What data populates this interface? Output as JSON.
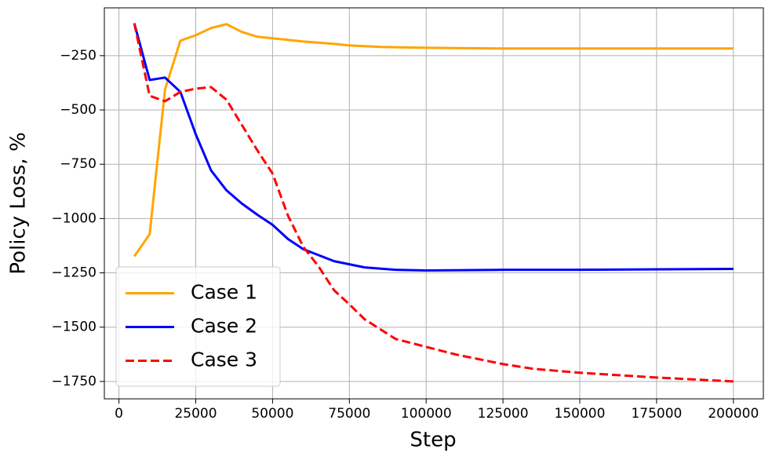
{
  "chart_data": {
    "type": "line",
    "xlabel": "Step",
    "ylabel": "Policy Loss, %",
    "xlim": [
      -4750,
      209750
    ],
    "ylim": [
      -1830,
      -30
    ],
    "xticks": [
      0,
      25000,
      50000,
      75000,
      100000,
      125000,
      150000,
      175000,
      200000
    ],
    "yticks": [
      {
        "value": -250,
        "label": "−250"
      },
      {
        "value": -500,
        "label": "−500"
      },
      {
        "value": -750,
        "label": "−750"
      },
      {
        "value": -1000,
        "label": "−1000"
      },
      {
        "value": -1250,
        "label": "−1250"
      },
      {
        "value": -1500,
        "label": "−1500"
      },
      {
        "value": -1750,
        "label": "−1750"
      }
    ],
    "grid": true,
    "legend": "lower left",
    "series": [
      {
        "name": "Case 1",
        "color": "#ffa500",
        "linestyle": "solid",
        "x": [
          5000,
          10000,
          15000,
          20000,
          25000,
          30000,
          35000,
          40000,
          45000,
          50000,
          60000,
          70000,
          75000,
          85000,
          100000,
          125000,
          150000,
          200000
        ],
        "values": [
          -1174,
          -1072,
          -406,
          -181,
          -156,
          -123,
          -105,
          -141,
          -163,
          -170,
          -185,
          -196,
          -203,
          -210,
          -214,
          -217,
          -217,
          -217
        ]
      },
      {
        "name": "Case 2",
        "color": "#0000ff",
        "linestyle": "solid",
        "x": [
          5000,
          10000,
          15000,
          20000,
          25000,
          30000,
          35000,
          40000,
          45000,
          50000,
          55000,
          60000,
          70000,
          80000,
          90000,
          100000,
          125000,
          150000,
          200000
        ],
        "values": [
          -101,
          -362,
          -351,
          -417,
          -612,
          -779,
          -870,
          -931,
          -982,
          -1029,
          -1094,
          -1141,
          -1196,
          -1225,
          -1236,
          -1239,
          -1236,
          -1236,
          -1232
        ]
      },
      {
        "name": "Case 3",
        "color": "#ff0000",
        "linestyle": "dashed",
        "x": [
          5000,
          10000,
          15000,
          20000,
          25000,
          30000,
          35000,
          40000,
          45000,
          50000,
          55000,
          60000,
          65000,
          70000,
          75000,
          80000,
          90000,
          100000,
          110000,
          125000,
          135000,
          150000,
          175000,
          200000
        ],
        "values": [
          -101,
          -435,
          -460,
          -417,
          -402,
          -395,
          -453,
          -569,
          -685,
          -793,
          -986,
          -1130,
          -1221,
          -1330,
          -1395,
          -1464,
          -1554,
          -1591,
          -1627,
          -1670,
          -1692,
          -1710,
          -1732,
          -1750
        ]
      }
    ]
  }
}
